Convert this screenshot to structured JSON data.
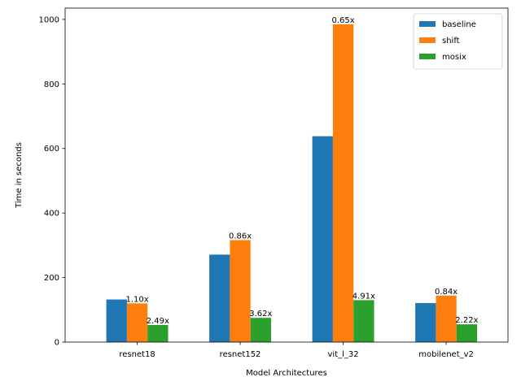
{
  "chart_data": {
    "type": "bar",
    "categories": [
      "resnet18",
      "resnet152",
      "vit_l_32",
      "mobilenet_v2"
    ],
    "series": [
      {
        "name": "baseline",
        "color": "#1f77b4",
        "values": [
          132,
          271,
          638,
          121
        ],
        "labels": [
          "",
          "",
          "",
          ""
        ]
      },
      {
        "name": "shift",
        "color": "#ff7f0e",
        "values": [
          120,
          316,
          985,
          144
        ],
        "labels": [
          "1.10x",
          "0.86x",
          "0.65x",
          "0.84x"
        ]
      },
      {
        "name": "mosix",
        "color": "#2ca02c",
        "values": [
          53,
          75,
          130,
          55
        ],
        "labels": [
          "2.49x",
          "3.62x",
          "4.91x",
          "2.22x"
        ]
      }
    ],
    "xlabel": "Model Architectures",
    "ylabel": "Time in seconds",
    "ylim": [
      0,
      1035
    ],
    "yticks": [
      0,
      200,
      400,
      600,
      800,
      1000
    ],
    "grid": false,
    "legend_position": "top-right"
  }
}
